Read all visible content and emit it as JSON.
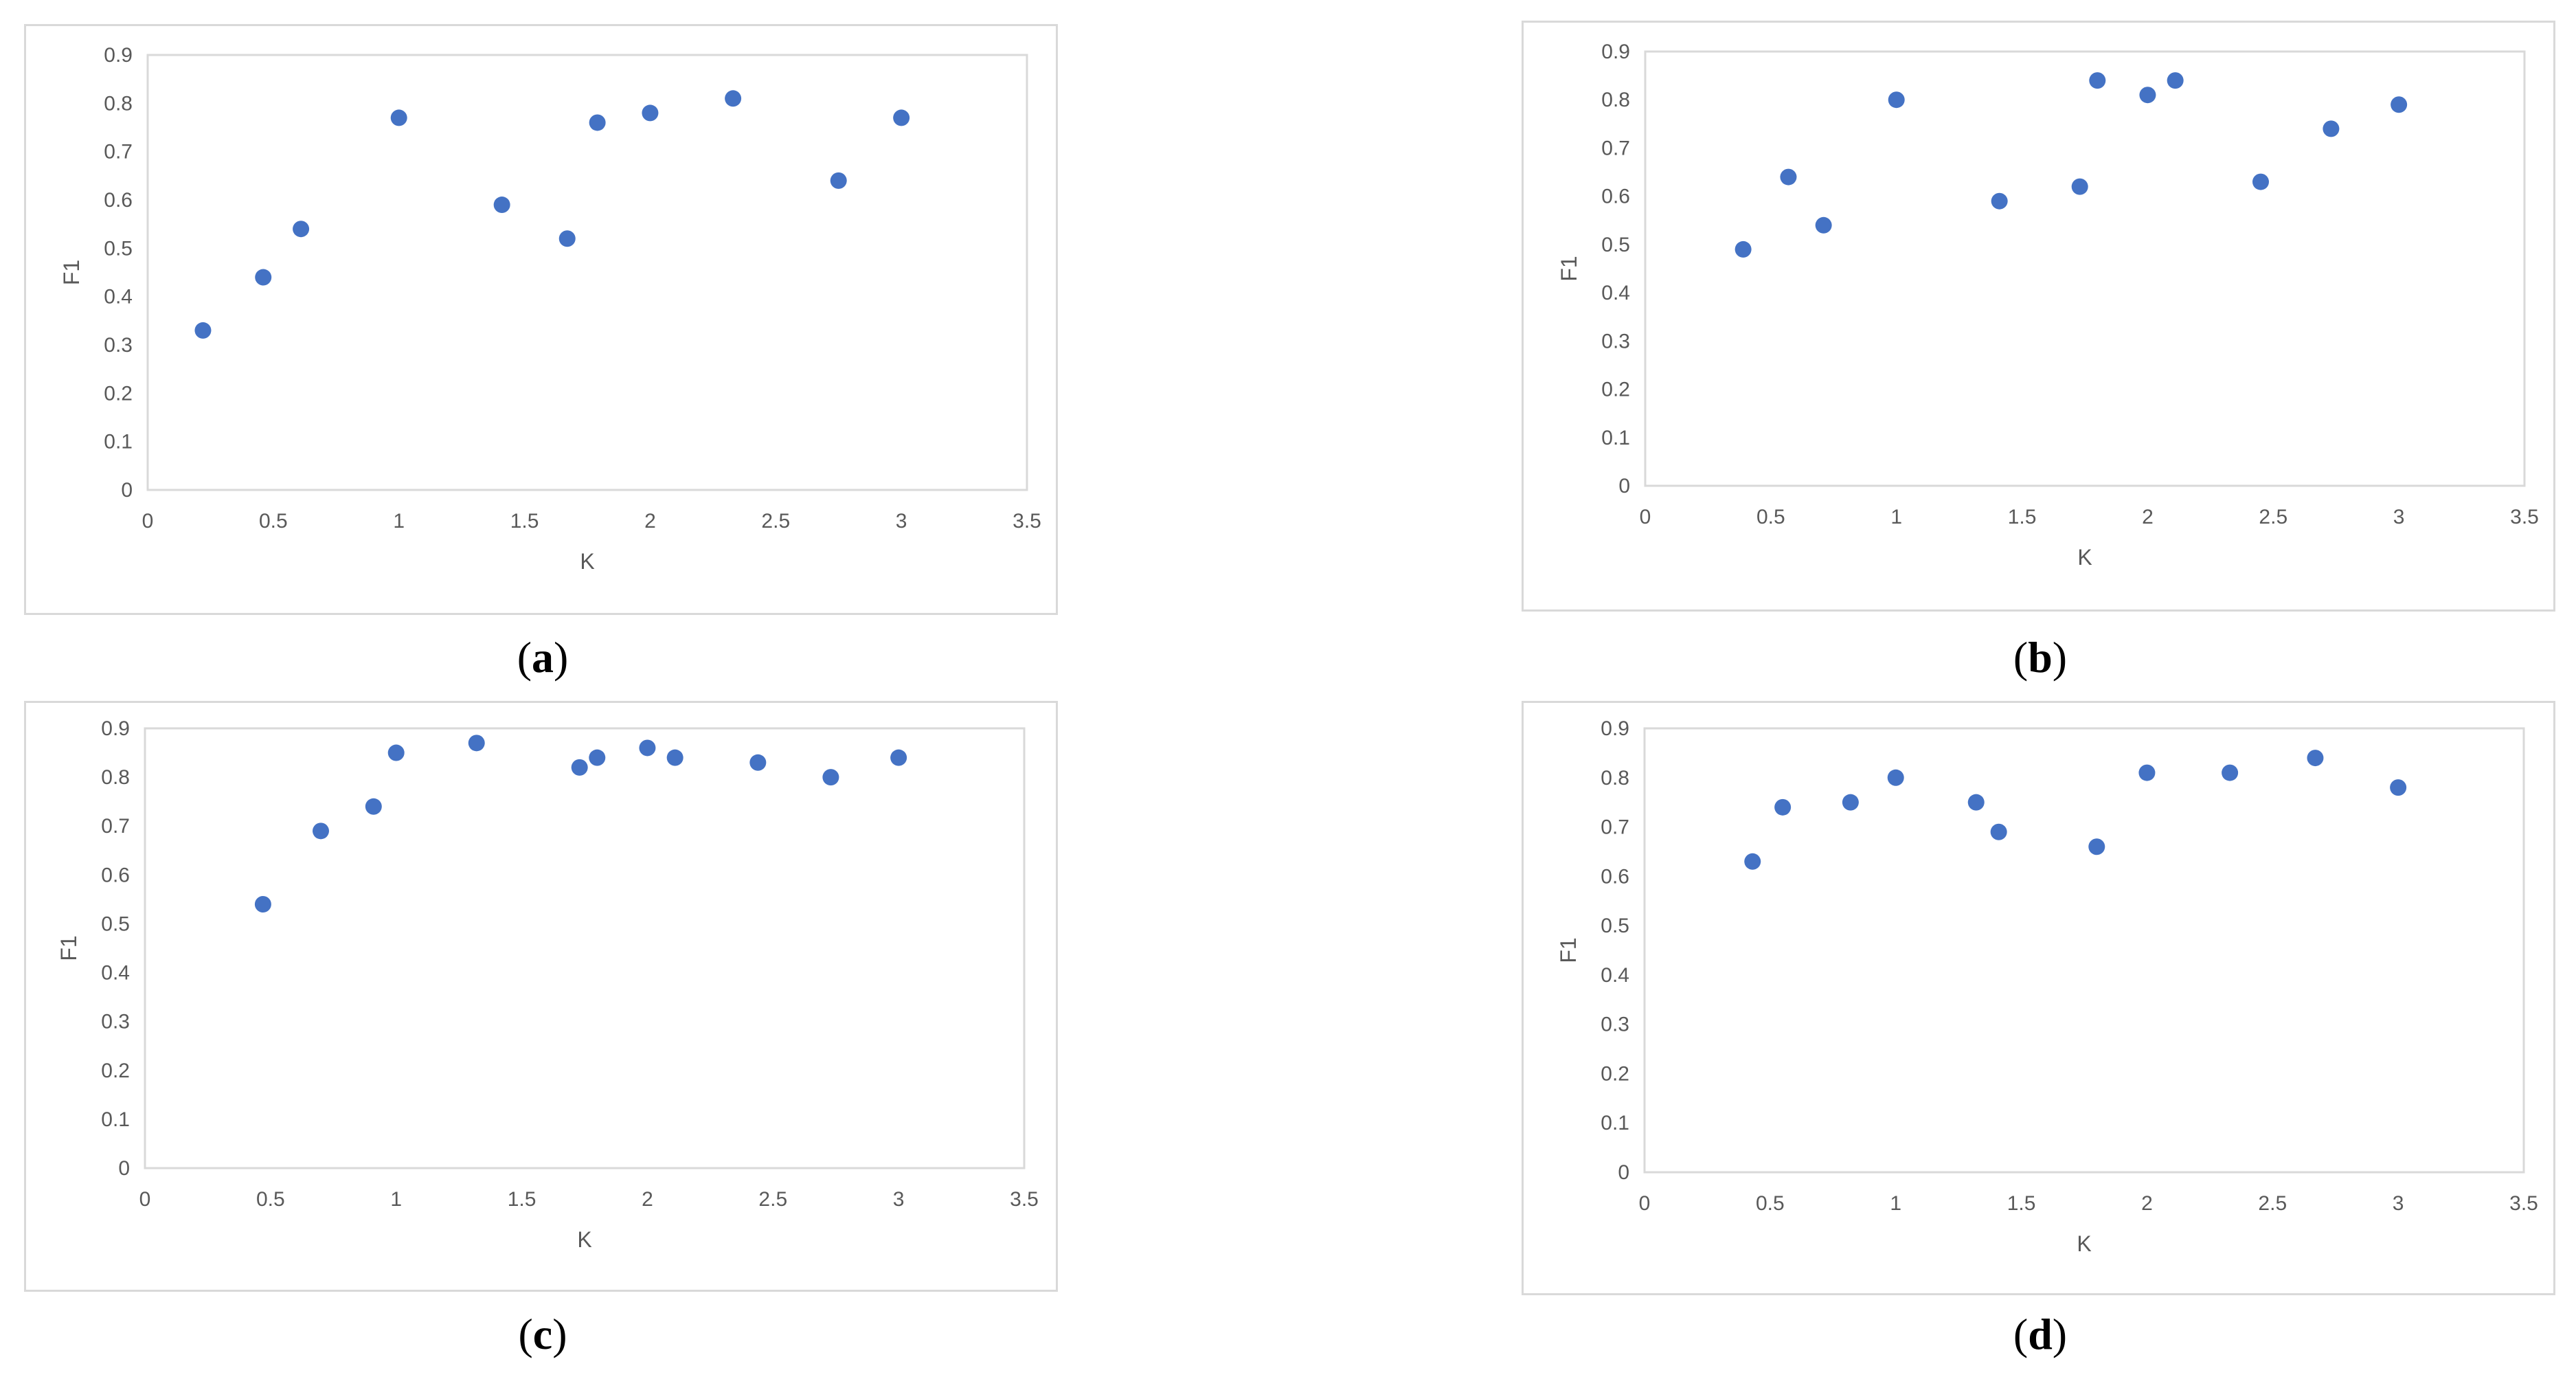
{
  "colors": {
    "point": "#4472c4",
    "grid": "#d9d9d9",
    "tick_label": "#595959",
    "axis_label": "#595959"
  },
  "chart_data": [
    {
      "type": "scatter",
      "caption": "a",
      "xlabel": "K",
      "ylabel": "F1",
      "xlim": [
        0,
        3.5
      ],
      "ylim": [
        0,
        0.9
      ],
      "xticks": [
        "0",
        "0.5",
        "1",
        "1.5",
        "2",
        "2.5",
        "3",
        "3.5"
      ],
      "yticks": [
        "0",
        "0.1",
        "0.2",
        "0.3",
        "0.4",
        "0.5",
        "0.6",
        "0.7",
        "0.8",
        "0.9"
      ],
      "grid": false,
      "points": [
        {
          "x": 0.22,
          "y": 0.33
        },
        {
          "x": 0.46,
          "y": 0.44
        },
        {
          "x": 0.61,
          "y": 0.54
        },
        {
          "x": 1.0,
          "y": 0.77
        },
        {
          "x": 1.41,
          "y": 0.59
        },
        {
          "x": 1.67,
          "y": 0.52
        },
        {
          "x": 1.79,
          "y": 0.76
        },
        {
          "x": 2.0,
          "y": 0.78
        },
        {
          "x": 2.33,
          "y": 0.81
        },
        {
          "x": 2.75,
          "y": 0.64
        },
        {
          "x": 3.0,
          "y": 0.77
        }
      ]
    },
    {
      "type": "scatter",
      "caption": "b",
      "xlabel": "K",
      "ylabel": "F1",
      "xlim": [
        0,
        3.5
      ],
      "ylim": [
        0,
        0.9
      ],
      "xticks": [
        "0",
        "0.5",
        "1",
        "1.5",
        "2",
        "2.5",
        "3",
        "3.5"
      ],
      "yticks": [
        "0",
        "0.1",
        "0.2",
        "0.3",
        "0.4",
        "0.5",
        "0.6",
        "0.7",
        "0.8",
        "0.9"
      ],
      "grid": false,
      "points": [
        {
          "x": 0.39,
          "y": 0.49
        },
        {
          "x": 0.57,
          "y": 0.64
        },
        {
          "x": 0.71,
          "y": 0.54
        },
        {
          "x": 1.0,
          "y": 0.8
        },
        {
          "x": 1.41,
          "y": 0.59
        },
        {
          "x": 1.73,
          "y": 0.62
        },
        {
          "x": 1.8,
          "y": 0.84
        },
        {
          "x": 2.0,
          "y": 0.81
        },
        {
          "x": 2.11,
          "y": 0.84
        },
        {
          "x": 2.45,
          "y": 0.63
        },
        {
          "x": 2.73,
          "y": 0.74
        },
        {
          "x": 3.0,
          "y": 0.79
        }
      ]
    },
    {
      "type": "scatter",
      "caption": "c",
      "xlabel": "K",
      "ylabel": "F1",
      "xlim": [
        0,
        3.5
      ],
      "ylim": [
        0,
        0.9
      ],
      "xticks": [
        "0",
        "0.5",
        "1",
        "1.5",
        "2",
        "2.5",
        "3",
        "3.5"
      ],
      "yticks": [
        "0",
        "0.1",
        "0.2",
        "0.3",
        "0.4",
        "0.5",
        "0.6",
        "0.7",
        "0.8",
        "0.9"
      ],
      "grid": false,
      "points": [
        {
          "x": 0.47,
          "y": 0.54
        },
        {
          "x": 0.7,
          "y": 0.69
        },
        {
          "x": 0.91,
          "y": 0.74
        },
        {
          "x": 1.0,
          "y": 0.85
        },
        {
          "x": 1.32,
          "y": 0.87
        },
        {
          "x": 1.73,
          "y": 0.82
        },
        {
          "x": 1.8,
          "y": 0.84
        },
        {
          "x": 2.0,
          "y": 0.86
        },
        {
          "x": 2.11,
          "y": 0.84
        },
        {
          "x": 2.44,
          "y": 0.83
        },
        {
          "x": 2.73,
          "y": 0.8
        },
        {
          "x": 3.0,
          "y": 0.84
        }
      ]
    },
    {
      "type": "scatter",
      "caption": "d",
      "xlabel": "K",
      "ylabel": "F1",
      "xlim": [
        0,
        3.5
      ],
      "ylim": [
        0,
        0.9
      ],
      "xticks": [
        "0",
        "0.5",
        "1",
        "1.5",
        "2",
        "2.5",
        "3",
        "3.5"
      ],
      "yticks": [
        "0",
        "0.1",
        "0.2",
        "0.3",
        "0.4",
        "0.5",
        "0.6",
        "0.7",
        "0.8",
        "0.9"
      ],
      "grid": false,
      "points": [
        {
          "x": 0.43,
          "y": 0.63
        },
        {
          "x": 0.55,
          "y": 0.74
        },
        {
          "x": 0.82,
          "y": 0.75
        },
        {
          "x": 1.0,
          "y": 0.8
        },
        {
          "x": 1.32,
          "y": 0.75
        },
        {
          "x": 1.41,
          "y": 0.69
        },
        {
          "x": 1.8,
          "y": 0.66
        },
        {
          "x": 2.0,
          "y": 0.81
        },
        {
          "x": 2.33,
          "y": 0.81
        },
        {
          "x": 2.67,
          "y": 0.84
        },
        {
          "x": 3.0,
          "y": 0.78
        }
      ]
    }
  ]
}
